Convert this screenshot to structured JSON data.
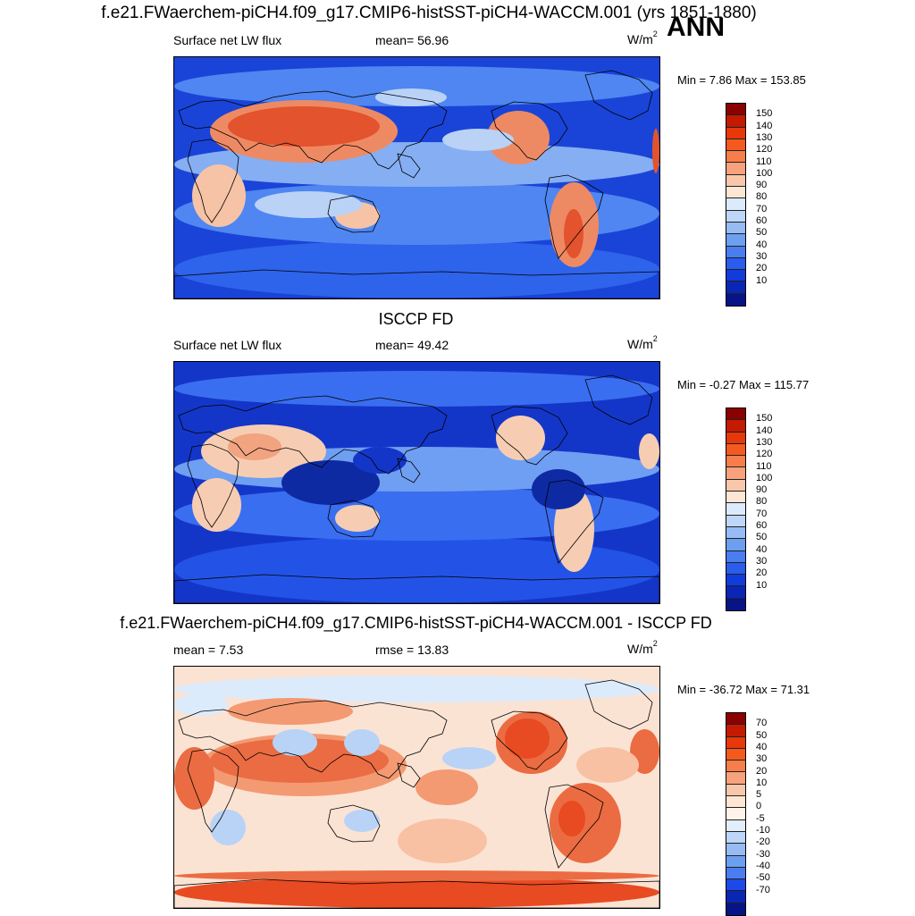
{
  "header": {
    "title": "f.e21.FWaerchem-piCH4.f09_g17.CMIP6-histSST-piCH4-WACCM.001 (yrs 1851-1880)",
    "season": "ANN"
  },
  "panels": [
    {
      "id": "model",
      "title": "",
      "variable": "Surface net LW flux",
      "stat1": "mean=  56.96",
      "stat2": "",
      "units": "W/m",
      "units_exp": "2",
      "minmax": "Min =   7.86 Max = 153.85",
      "colorbar": {
        "levels": [
          "150",
          "140",
          "130",
          "120",
          "110",
          "100",
          "90",
          "80",
          "70",
          "60",
          "50",
          "40",
          "30",
          "20",
          "10"
        ],
        "colors": [
          "#8b0000",
          "#c41a00",
          "#e6380a",
          "#f45a1e",
          "#f77e4b",
          "#f7a27c",
          "#f9c7ac",
          "#fde6d4",
          "#dcebfb",
          "#bed6f7",
          "#97bbf4",
          "#6d9ff0",
          "#4a7ef0",
          "#2a5ced",
          "#123bdc",
          "#0a26b5",
          "#061486"
        ]
      },
      "map_palette": [
        "#2e63eb",
        "#4f86f1",
        "#86aef3",
        "#b9d2f6",
        "#f6c3a6",
        "#ee8a63",
        "#e3532d",
        "#1a44d8"
      ]
    },
    {
      "id": "obs",
      "title": "ISCCP FD",
      "variable": "Surface net LW flux",
      "stat1": "mean=  49.42",
      "stat2": "",
      "units": "W/m",
      "units_exp": "2",
      "minmax": "Min =  -0.27 Max = 115.77",
      "colorbar": {
        "levels": [
          "150",
          "140",
          "130",
          "120",
          "110",
          "100",
          "90",
          "80",
          "70",
          "60",
          "50",
          "40",
          "30",
          "20",
          "10"
        ],
        "colors": [
          "#8b0000",
          "#c41a00",
          "#e6380a",
          "#f45a1e",
          "#f77e4b",
          "#f7a27c",
          "#f9c7ac",
          "#fde6d4",
          "#dcebfb",
          "#bed6f7",
          "#97bbf4",
          "#6d9ff0",
          "#4a7ef0",
          "#2a5ced",
          "#123bdc",
          "#0a26b5",
          "#061486"
        ]
      },
      "map_palette": [
        "#2353e6",
        "#3a6ef0",
        "#6f9ff2",
        "#b0ccf6",
        "#f6cdb3",
        "#f2a380",
        "#1436c8",
        "#0e2aa3"
      ]
    },
    {
      "id": "diff",
      "title": "f.e21.FWaerchem-piCH4.f09_g17.CMIP6-histSST-piCH4-WACCM.001 - ISCCP FD",
      "variable": "",
      "stat1": "mean =   7.53",
      "stat2": "rmse =  13.83",
      "units": "W/m",
      "units_exp": "2",
      "minmax": "Min = -36.72 Max =  71.31",
      "colorbar": {
        "levels": [
          "70",
          "50",
          "40",
          "30",
          "20",
          "10",
          "5",
          "0",
          "-5",
          "-10",
          "-20",
          "-30",
          "-40",
          "-50",
          "-70"
        ],
        "colors": [
          "#8b0000",
          "#c41a00",
          "#e6380a",
          "#f45a1e",
          "#f77e4b",
          "#f7a27c",
          "#f9c7ac",
          "#fde6d4",
          "#fff3ea",
          "#e3eefb",
          "#bed6f7",
          "#97bbf4",
          "#6d9ff0",
          "#4a7ef0",
          "#1d49e6",
          "#0a26b5",
          "#061486"
        ]
      },
      "map_palette": [
        "#fbe3d4",
        "#f8c1a4",
        "#f39a73",
        "#eb6c42",
        "#dcebfb",
        "#b8d3f6",
        "#7aa6f2",
        "#e84a22"
      ]
    }
  ]
}
